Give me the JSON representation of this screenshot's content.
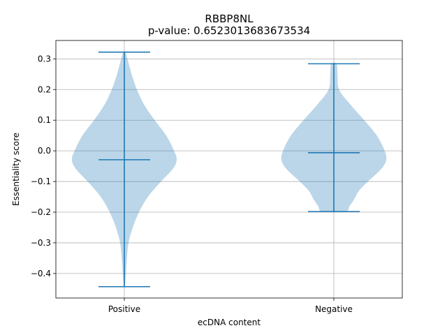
{
  "chart_data": {
    "type": "violin",
    "title": "RBBP8NL",
    "subtitle": "p-value: 0.6523013683673534",
    "xlabel": "ecDNA content",
    "ylabel": "Essentiality score",
    "categories": [
      "Positive",
      "Negative"
    ],
    "ylim": [
      -0.48,
      0.36
    ],
    "yticks": [
      -0.4,
      -0.3,
      -0.2,
      -0.1,
      0.0,
      0.1,
      0.2,
      0.3
    ],
    "ytick_labels": [
      "−0.4",
      "−0.3",
      "−0.2",
      "−0.1",
      "0.0",
      "0.1",
      "0.2",
      "0.3"
    ],
    "grid": true,
    "color": "#1f77b4",
    "series": [
      {
        "category": "Positive",
        "min": -0.443,
        "median": -0.029,
        "max": 0.322,
        "density_profile": [
          [
            0.322,
            0.02
          ],
          [
            0.3,
            0.06
          ],
          [
            0.25,
            0.14
          ],
          [
            0.2,
            0.24
          ],
          [
            0.15,
            0.38
          ],
          [
            0.1,
            0.58
          ],
          [
            0.05,
            0.8
          ],
          [
            0.0,
            0.95
          ],
          [
            -0.03,
            1.0
          ],
          [
            -0.06,
            0.92
          ],
          [
            -0.1,
            0.7
          ],
          [
            -0.15,
            0.45
          ],
          [
            -0.2,
            0.28
          ],
          [
            -0.25,
            0.16
          ],
          [
            -0.3,
            0.08
          ],
          [
            -0.35,
            0.05
          ],
          [
            -0.4,
            0.03
          ],
          [
            -0.443,
            0.01
          ]
        ]
      },
      {
        "category": "Negative",
        "min": -0.198,
        "median": -0.006,
        "max": 0.284,
        "density_profile": [
          [
            0.284,
            0.05
          ],
          [
            0.25,
            0.07
          ],
          [
            0.2,
            0.1
          ],
          [
            0.15,
            0.32
          ],
          [
            0.1,
            0.58
          ],
          [
            0.05,
            0.82
          ],
          [
            0.0,
            0.97
          ],
          [
            -0.03,
            1.0
          ],
          [
            -0.06,
            0.9
          ],
          [
            -0.1,
            0.65
          ],
          [
            -0.13,
            0.48
          ],
          [
            -0.16,
            0.38
          ],
          [
            -0.18,
            0.3
          ],
          [
            -0.198,
            0.22
          ]
        ]
      }
    ]
  }
}
